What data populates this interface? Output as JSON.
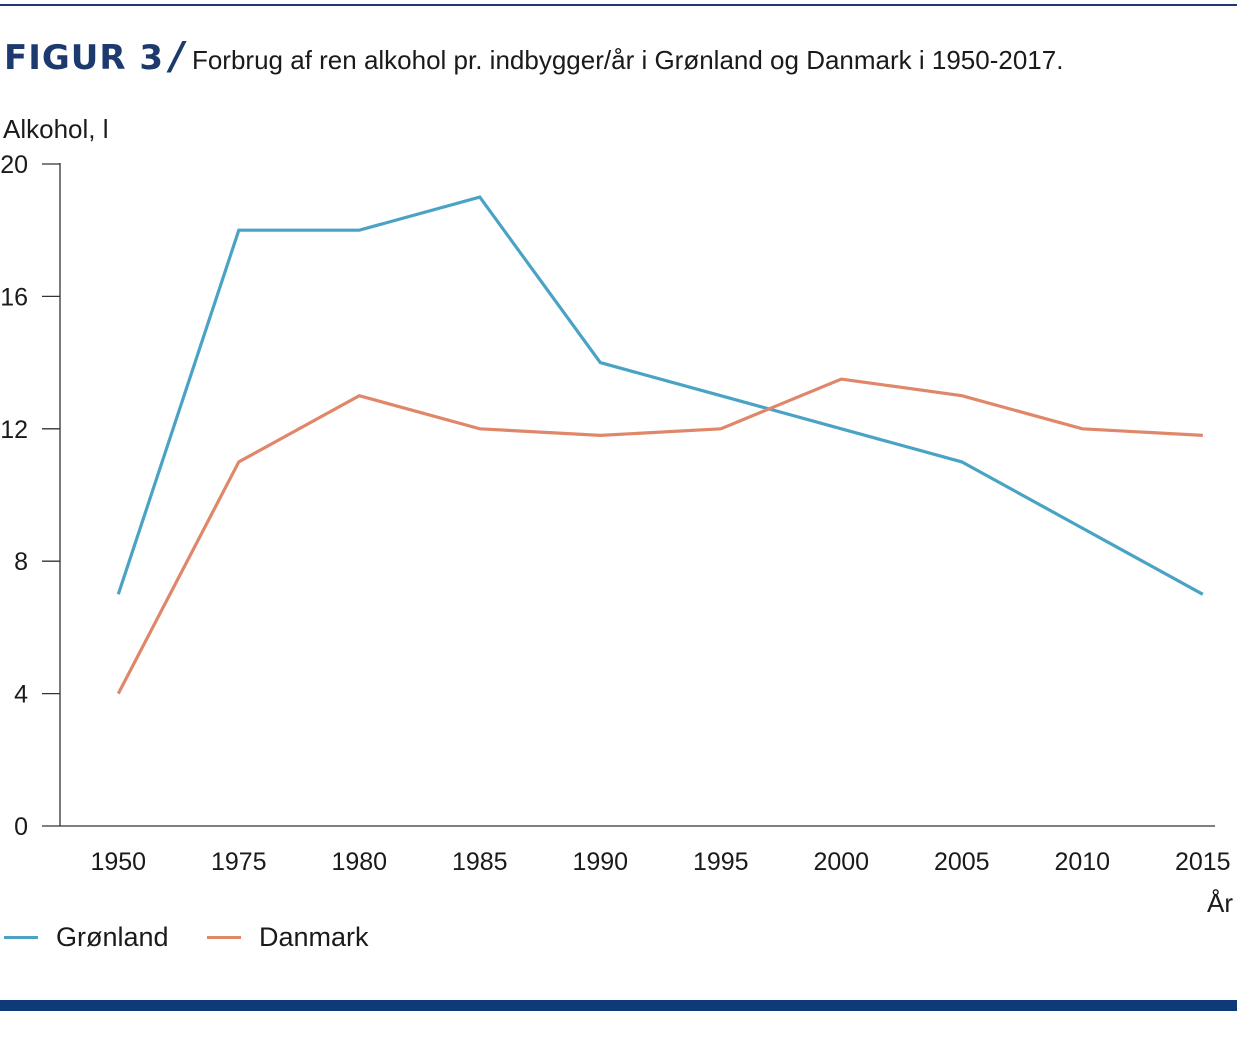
{
  "figure": {
    "label": "FIGUR 3",
    "slash": "/",
    "title": "Forbrug af ren alkohol pr. indbygger/år i Grønland og Danmark i 1950-2017."
  },
  "chart_data": {
    "type": "line",
    "title": "Forbrug af ren alkohol pr. indbygger/år i Grønland og Danmark i 1950-2017.",
    "ylabel": "Alkohol, l",
    "xlabel": "År",
    "categories": [
      "1950",
      "1975",
      "1980",
      "1985",
      "1990",
      "1995",
      "2000",
      "2005",
      "2010",
      "2015"
    ],
    "x_positions": [
      1950,
      1975,
      1980,
      1985,
      1990,
      1995,
      2000,
      2005,
      2010,
      2015
    ],
    "yticks": [
      0,
      4,
      8,
      12,
      16,
      20
    ],
    "ylim": [
      0,
      20
    ],
    "series": [
      {
        "name": "Grønland",
        "color": "#4aa3c4",
        "x": [
          1950,
          1975,
          1980,
          1985,
          1990,
          1995,
          2000,
          2005,
          2010,
          2015
        ],
        "values": [
          7,
          18,
          18,
          19,
          14,
          13,
          12,
          11,
          9,
          7
        ]
      },
      {
        "name": "Danmark",
        "color": "#e0876a",
        "x": [
          1950,
          1975,
          1980,
          1985,
          1990,
          1995,
          2000,
          2005,
          2010,
          2015
        ],
        "values": [
          4,
          11,
          13,
          12,
          11.8,
          12,
          13.5,
          13,
          12,
          11.8
        ]
      }
    ],
    "legend_position": "bottom-left",
    "grid": false
  }
}
